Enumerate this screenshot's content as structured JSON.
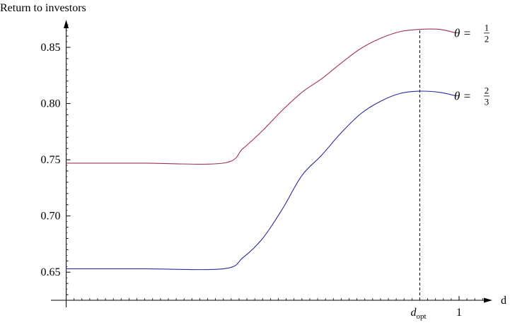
{
  "chart_data": {
    "type": "line",
    "ylabel": "Return to investors",
    "xlabel": "d",
    "xlim": [
      -0.01,
      1.09
    ],
    "ylim": [
      0.625,
      0.872
    ],
    "yticks": [
      0.65,
      0.7,
      0.75,
      0.8,
      0.85
    ],
    "ytick_labels": [
      "0.65",
      "0.70",
      "0.75",
      "0.80",
      "0.85"
    ],
    "xticks_major": [
      {
        "value": 0.9,
        "label_base": "d",
        "label_sub": "opt"
      },
      {
        "value": 1.0,
        "label": "1"
      }
    ],
    "grid": false,
    "reference_line": {
      "x": 0.9,
      "style": "dashed",
      "color": "#000000"
    },
    "series": [
      {
        "label_lhs": "θ =",
        "label_num": "1",
        "label_den": "2",
        "color": "#a0305a",
        "x": [
          0.0,
          0.1,
          0.2,
          0.4,
          0.45,
          0.5,
          0.55,
          0.6,
          0.65,
          0.7,
          0.75,
          0.8,
          0.85,
          0.9,
          0.95,
          0.99
        ],
        "y": [
          0.747,
          0.747,
          0.747,
          0.747,
          0.76,
          0.776,
          0.794,
          0.81,
          0.822,
          0.836,
          0.849,
          0.858,
          0.864,
          0.866,
          0.866,
          0.863
        ]
      },
      {
        "label_lhs": "θ =",
        "label_num": "2",
        "label_den": "3",
        "color": "#2b2b9e",
        "x": [
          0.0,
          0.1,
          0.2,
          0.4,
          0.45,
          0.5,
          0.55,
          0.6,
          0.65,
          0.7,
          0.75,
          0.8,
          0.85,
          0.9,
          0.95,
          0.99
        ],
        "y": [
          0.653,
          0.653,
          0.653,
          0.653,
          0.663,
          0.68,
          0.706,
          0.736,
          0.754,
          0.774,
          0.791,
          0.802,
          0.809,
          0.811,
          0.81,
          0.807
        ]
      }
    ]
  }
}
